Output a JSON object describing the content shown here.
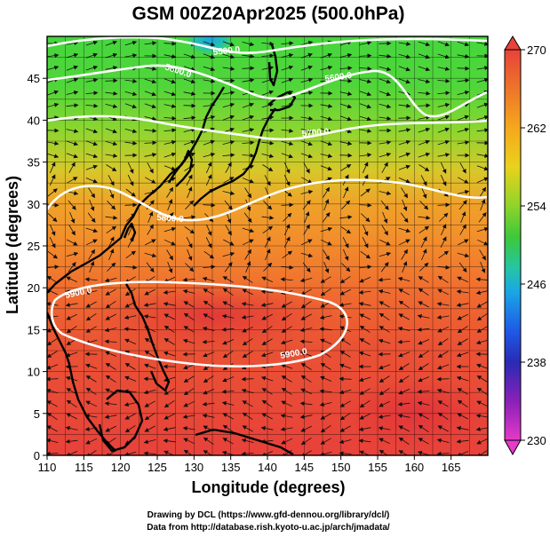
{
  "title": "GSM 00Z20Apr2025 (500.0hPa)",
  "xlabel": "Longitude (degrees)",
  "ylabel": "Latitude  (degrees)",
  "credit_line1": "Drawing by DCL (https://www.gfd-dennou.org/library/dcl/)",
  "credit_line2": "Data from http://database.rish.kyoto-u.ac.jp/arch/jmadata/",
  "contour_labels": [
    "5500.0",
    "5600.0",
    "5700.0",
    "5800.0",
    "5900.0"
  ],
  "colorbar": {
    "ticks": [
      "270",
      "262",
      "254",
      "246",
      "238",
      "230"
    ],
    "colors": [
      "#e64a3a",
      "#ee7a28",
      "#f5a81c",
      "#e9d21c",
      "#8fd42a",
      "#3dc83a",
      "#25c5a5",
      "#1aa6e6",
      "#1e5ae6",
      "#2a2ab4",
      "#8a20b8",
      "#e63ac8"
    ]
  },
  "chart_data": {
    "type": "heatmap",
    "title": "GSM 00Z20Apr2025 (500.0hPa)",
    "xlabel": "Longitude (degrees)",
    "ylabel": "Latitude  (degrees)",
    "xlim": [
      110,
      170
    ],
    "ylim": [
      0,
      50
    ],
    "xticks": [
      "110",
      "115",
      "120",
      "125",
      "130",
      "135",
      "140",
      "145",
      "150",
      "155",
      "160",
      "165"
    ],
    "yticks": [
      "0",
      "5",
      "10",
      "15",
      "20",
      "25",
      "30",
      "35",
      "40",
      "45"
    ],
    "color_range": [
      230,
      270
    ],
    "grid": true,
    "contours": [
      {
        "label": "5500.0",
        "lat_approx": 49
      },
      {
        "label": "5600.0",
        "lat_approx": 46
      },
      {
        "label": "5700.0",
        "lat_approx": 40
      },
      {
        "label": "5800.0",
        "lat_approx": 31
      },
      {
        "label": "5900.0",
        "lat_approx": 18
      }
    ]
  }
}
